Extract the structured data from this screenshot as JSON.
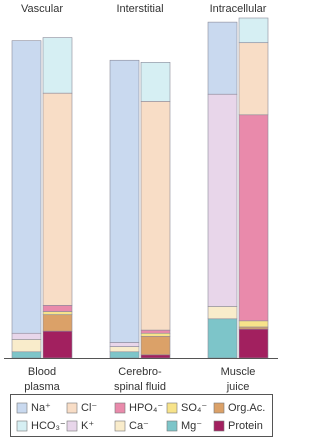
{
  "chart_data": {
    "type": "stacked-columns",
    "group_titles": [
      "Vascular",
      "Interstitial",
      "Intracellular"
    ],
    "categories": [
      [
        "Blood",
        "plasma"
      ],
      [
        "Cerebro-",
        "spinal fluid"
      ],
      [
        "Muscle",
        "juice"
      ]
    ],
    "series": [
      {
        "name": "Na⁺",
        "color": "#c9d9ef",
        "stack": 0,
        "values": [
          142,
          137,
          35
        ]
      },
      {
        "name": "HCO₃⁻",
        "color": "#d6eff3",
        "stack": 1,
        "values": [
          27,
          19,
          12
        ]
      },
      {
        "name": "Cl⁻",
        "color": "#f8ddc6",
        "stack": 1,
        "values": [
          103,
          111,
          35
        ]
      },
      {
        "name": "K⁺",
        "color": "#e8d6ea",
        "stack": 0,
        "values": [
          3,
          2,
          103
        ]
      },
      {
        "name": "HPO₄⁻",
        "color": "#e98aab",
        "stack": 1,
        "values": [
          3,
          1.5,
          100
        ]
      },
      {
        "name": "Ca⁻",
        "color": "#f9eccb",
        "stack": 0,
        "values": [
          6,
          2.5,
          6
        ]
      },
      {
        "name": "SO₄⁻",
        "color": "#f7e38a",
        "stack": 1,
        "values": [
          1.5,
          1.5,
          3
        ]
      },
      {
        "name": "Mg⁻",
        "color": "#7dc5c9",
        "stack": 0,
        "values": [
          3,
          3,
          19
        ]
      },
      {
        "name": "Org.Ac.",
        "color": "#dba168",
        "stack": 1,
        "values": [
          8,
          9,
          1
        ]
      },
      {
        "name": "Protein",
        "color": "#a2205f",
        "stack": 1,
        "values": [
          13,
          1.5,
          14
        ]
      }
    ]
  }
}
